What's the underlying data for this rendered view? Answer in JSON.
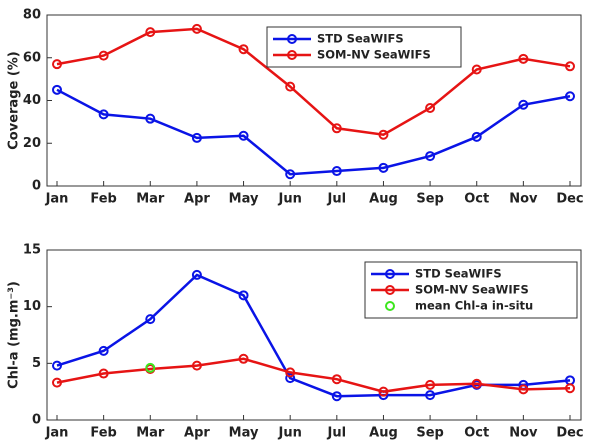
{
  "chart_data": [
    {
      "type": "line",
      "ylabel": "Coverage (%)",
      "categories": [
        "Jan",
        "Feb",
        "Mar",
        "Apr",
        "May",
        "Jun",
        "Jul",
        "Aug",
        "Sep",
        "Oct",
        "Nov",
        "Dec"
      ],
      "series": [
        {
          "name": "STD SeaWIFS",
          "color": "#0a14e6",
          "values": [
            45,
            33.5,
            31.5,
            22.5,
            23.5,
            5.5,
            7,
            8.5,
            14,
            23,
            38,
            42
          ]
        },
        {
          "name": "SOM-NV SeaWIFS",
          "color": "#e61414",
          "values": [
            57,
            61,
            72,
            73.5,
            64,
            46.5,
            27,
            24,
            36.5,
            54.5,
            59.5,
            56
          ]
        }
      ],
      "ylim": [
        0,
        80
      ],
      "yticks": [
        0,
        20,
        40,
        60,
        80
      ],
      "grid": false,
      "legend": "upper center"
    },
    {
      "type": "line",
      "ylabel": "Chl-a (mg.m⁻³)",
      "categories": [
        "Jan",
        "Feb",
        "Mar",
        "Apr",
        "May",
        "Jun",
        "Jul",
        "Aug",
        "Sep",
        "Oct",
        "Nov",
        "Dec"
      ],
      "series": [
        {
          "name": "STD SeaWIFS",
          "color": "#0a14e6",
          "values": [
            4.8,
            6.1,
            8.9,
            12.8,
            11,
            3.7,
            2.1,
            2.2,
            2.2,
            3.1,
            3.1,
            3.5
          ]
        },
        {
          "name": "SOM-NV SeaWIFS",
          "color": "#e61414",
          "values": [
            3.3,
            4.1,
            4.5,
            4.8,
            5.4,
            4.2,
            3.6,
            2.5,
            3.1,
            3.2,
            2.7,
            2.8
          ]
        },
        {
          "name": "mean Chl-a in-situ",
          "color": "#3ce61e",
          "linestyle": "none",
          "values": [
            null,
            null,
            4.6,
            null,
            null,
            null,
            null,
            null,
            null,
            null,
            null,
            null
          ]
        }
      ],
      "ylim": [
        0,
        15
      ],
      "yticks": [
        0,
        5,
        10,
        15
      ],
      "grid": false,
      "legend": "upper right"
    }
  ]
}
